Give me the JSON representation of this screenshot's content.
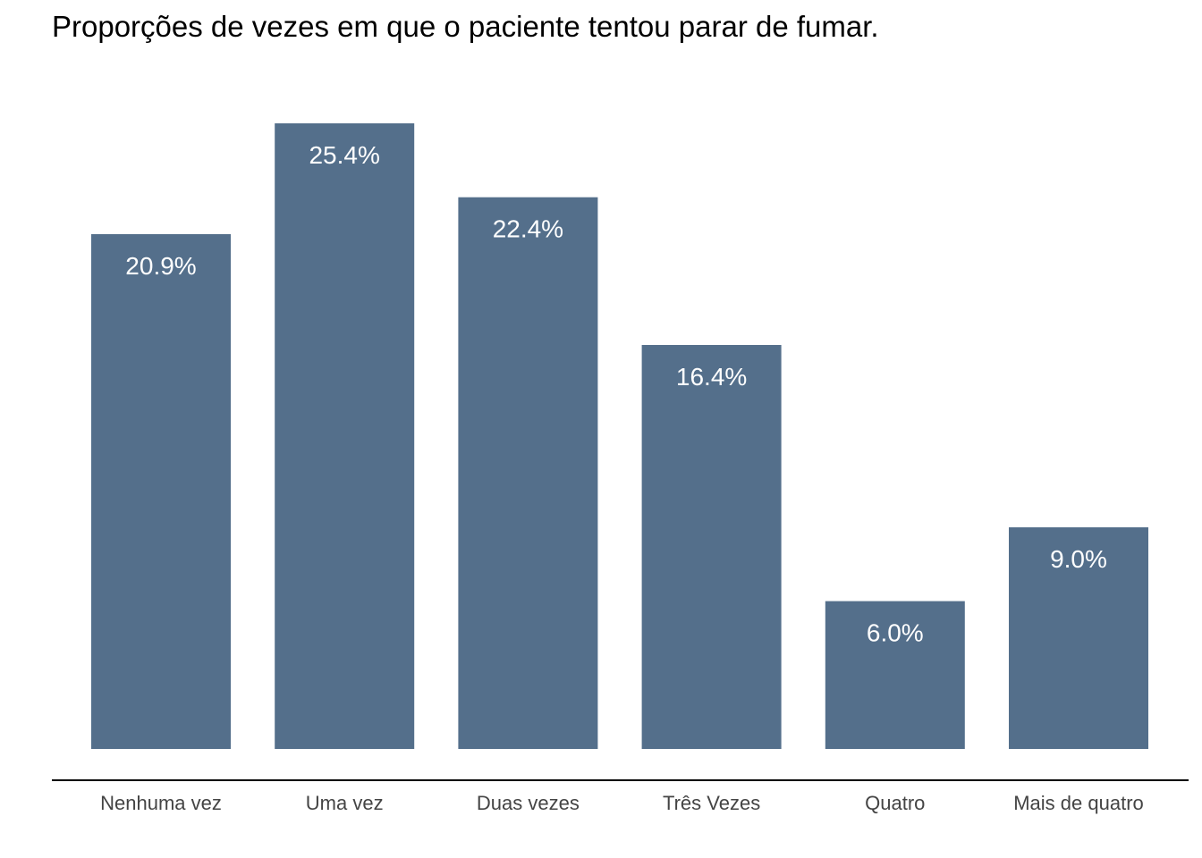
{
  "chart_data": {
    "type": "bar",
    "title": "Proporções de vezes em que o paciente tentou parar de fumar.",
    "xlabel": "",
    "ylabel": "",
    "categories": [
      "Nenhuma vez",
      "Uma vez",
      "Duas vezes",
      "Três Vezes",
      "Quatro",
      "Mais de quatro"
    ],
    "values": [
      20.9,
      25.4,
      22.4,
      16.4,
      6.0,
      9.0
    ],
    "data_labels": [
      "20.9%",
      "25.4%",
      "22.4%",
      "16.4%",
      "6.0%",
      "9.0%"
    ],
    "unit": "%",
    "ylim": [
      0,
      25.4
    ],
    "grid": false,
    "y_axis_visible": false,
    "colors": {
      "bar": "#546F8B",
      "bar_label": "#FFFFFF",
      "tick_label": "#444444",
      "axis_line": "#000000",
      "title": "#000000"
    }
  }
}
